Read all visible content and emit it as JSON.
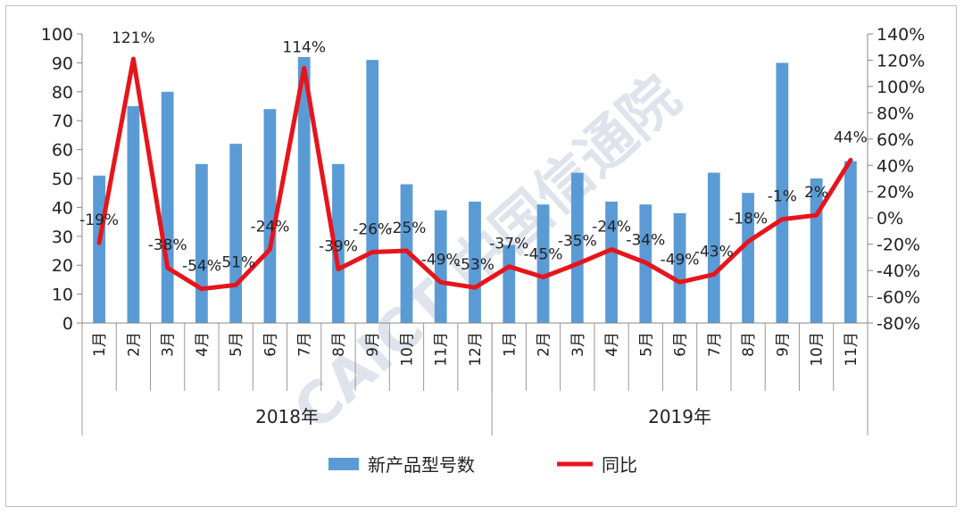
{
  "chart_data": {
    "type": "bar",
    "groups": [
      {
        "label": "2018年",
        "categories": [
          "1月",
          "2月",
          "3月",
          "4月",
          "5月",
          "6月",
          "7月",
          "8月",
          "9月",
          "10月",
          "11月",
          "12月"
        ]
      },
      {
        "label": "2019年",
        "categories": [
          "1月",
          "2月",
          "3月",
          "4月",
          "5月",
          "6月",
          "7月",
          "8月",
          "9月",
          "10月",
          "11月"
        ]
      }
    ],
    "series": [
      {
        "name": "新产品型号数",
        "type": "bar",
        "axis": "left",
        "color": "#5b9bd5",
        "values": [
          51,
          75,
          80,
          55,
          62,
          74,
          92,
          55,
          91,
          48,
          39,
          42,
          27,
          41,
          52,
          42,
          41,
          38,
          52,
          45,
          90,
          50,
          56
        ]
      },
      {
        "name": "同比",
        "type": "line",
        "axis": "right",
        "color": "#e8141c",
        "values": [
          -19,
          121,
          -38,
          -54,
          -51,
          -24,
          114,
          -39,
          -26,
          -25,
          -49,
          -53,
          -37,
          -45,
          -35,
          -24,
          -34,
          -49,
          -43,
          -18,
          -1,
          2,
          44
        ],
        "labels": [
          "-19%",
          "121%",
          "-38%",
          "-54%",
          "-51%",
          "-24%",
          "114%",
          "-39%",
          "-26%",
          "-25%",
          "-49%",
          "-53%",
          "-37%",
          "-45%",
          "-35%",
          "-24%",
          "-34%",
          "-49%",
          "-43%",
          "-18%",
          "-1%",
          "2%",
          "44%"
        ]
      }
    ],
    "y_left": {
      "min": 0,
      "max": 100,
      "step": 10,
      "ticks": [
        "0",
        "10",
        "20",
        "30",
        "40",
        "50",
        "60",
        "70",
        "80",
        "90",
        "100"
      ]
    },
    "y_right": {
      "min": -80,
      "max": 140,
      "step": 20,
      "ticks": [
        "-80%",
        "-60%",
        "-40%",
        "-20%",
        "0%",
        "20%",
        "40%",
        "60%",
        "80%",
        "100%",
        "120%",
        "140%"
      ]
    },
    "grid": false,
    "legend_position": "bottom"
  },
  "watermark": "CAICT 中国信通院"
}
